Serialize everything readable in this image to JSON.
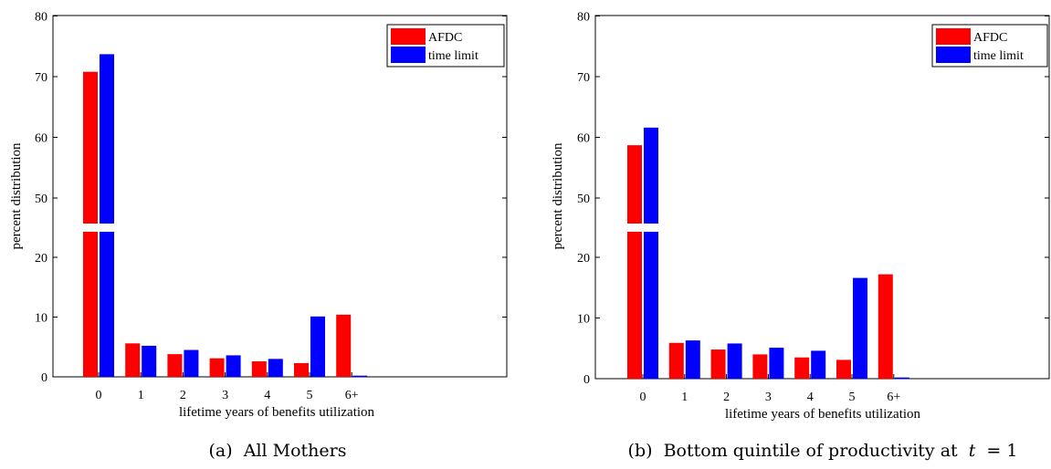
{
  "colors": {
    "afdc": "#ff0000",
    "time_limit": "#0000ff",
    "axis": "#000000",
    "background": "#ffffff"
  },
  "chart_data": [
    {
      "type": "bar",
      "categories": [
        "0",
        "1",
        "2",
        "3",
        "4",
        "5",
        "6+"
      ],
      "series": [
        {
          "name": "AFDC",
          "values": [
            70.8,
            5.6,
            3.8,
            3.1,
            2.6,
            2.3,
            10.4
          ]
        },
        {
          "name": "time limit",
          "values": [
            73.7,
            5.2,
            4.5,
            3.6,
            3.0,
            10.1,
            0.2
          ]
        }
      ],
      "xlabel": "lifetime years of benefits utilization",
      "ylabel": "percent distribution",
      "y_tick_labels": [
        "0",
        "10",
        "20",
        "50",
        "60",
        "70",
        "80"
      ],
      "y_axis_break": [
        25,
        45
      ],
      "ylim": [
        0,
        80
      ],
      "grid": false,
      "legend_position": "top-right",
      "caption_label": "(a)",
      "caption_text": "All Mothers"
    },
    {
      "type": "bar",
      "categories": [
        "0",
        "1",
        "2",
        "3",
        "4",
        "5",
        "6+"
      ],
      "series": [
        {
          "name": "AFDC",
          "values": [
            58.7,
            5.9,
            4.8,
            4.0,
            3.5,
            3.1,
            17.2
          ]
        },
        {
          "name": "time limit",
          "values": [
            61.6,
            6.3,
            5.8,
            5.1,
            4.6,
            16.6,
            0.2
          ]
        }
      ],
      "xlabel": "lifetime years of benefits utilization",
      "ylabel": "percent distribution",
      "y_tick_labels": [
        "0",
        "10",
        "20",
        "50",
        "60",
        "70",
        "80"
      ],
      "y_axis_break": [
        25,
        45
      ],
      "ylim": [
        0,
        80
      ],
      "grid": false,
      "legend_position": "top-right",
      "caption_label": "(b)",
      "caption_text": "Bottom quintile of productivity at",
      "caption_math_var": "t",
      "caption_math_rest": "= 1"
    }
  ]
}
